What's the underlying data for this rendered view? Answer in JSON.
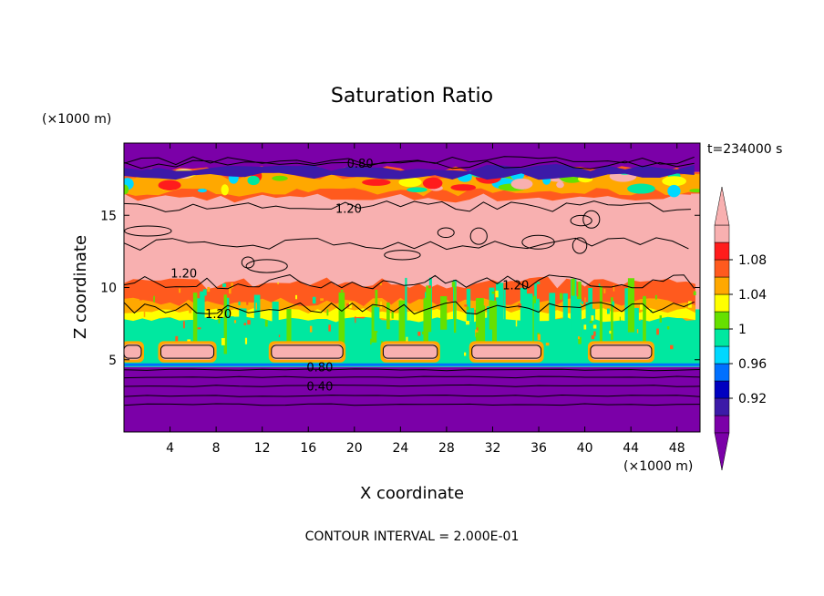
{
  "chart_data": {
    "type": "heatmap",
    "title": "Saturation Ratio",
    "xlabel": "X coordinate",
    "ylabel": "Z coordinate",
    "x_unit": "(×1000 m)",
    "y_unit": "(×1000 m)",
    "time_label": "t=234000 s",
    "footer": "CONTOUR INTERVAL = 2.000E-01",
    "xlim": [
      0,
      50
    ],
    "ylim": [
      0,
      20
    ],
    "x_ticks": [
      4,
      8,
      12,
      16,
      20,
      24,
      28,
      32,
      36,
      40,
      44,
      48
    ],
    "y_ticks": [
      5,
      10,
      15
    ],
    "contour_interval": 0.2,
    "colorbar": {
      "colors": [
        "#7b00a8",
        "#3c1aa8",
        "#0000c0",
        "#0070ff",
        "#00d8ff",
        "#00e8a0",
        "#66e000",
        "#ffff00",
        "#ffa800",
        "#ff5a1e",
        "#ff1c1c",
        "#f8b0b0"
      ],
      "tick_labels": [
        "0.92",
        "0.96",
        "1",
        "1.04",
        "1.08"
      ],
      "tick_values": [
        0.92,
        0.96,
        1.0,
        1.04,
        1.08
      ],
      "levels": [
        0.9,
        0.92,
        0.94,
        0.96,
        0.98,
        1.0,
        1.02,
        1.04,
        1.06,
        1.08,
        1.1
      ]
    },
    "regions": [
      {
        "z_range": [
          0,
          4.5
        ],
        "value": "< 0.90",
        "color": "#7b00a8"
      },
      {
        "z_range": [
          4.5,
          8.5
        ],
        "value": "0.98 - 1.02",
        "color": "#00e8a0"
      },
      {
        "z_range": [
          8.5,
          16.5
        ],
        "value": "> 1.10",
        "color": "#f8b0b0"
      },
      {
        "z_range": [
          16.5,
          18.0
        ],
        "value": "0.94 - 1.10 (mixed)",
        "color": "#ff5a1e"
      },
      {
        "z_range": [
          18.0,
          20
        ],
        "value": "< 0.90",
        "color": "#7b00a8"
      }
    ],
    "contour_labels": [
      {
        "text": "0.80",
        "x": 20.5,
        "z": 18.6
      },
      {
        "text": "1.20",
        "x": 19.5,
        "z": 15.5
      },
      {
        "text": "1.20",
        "x": 5.2,
        "z": 11.0
      },
      {
        "text": "1.20",
        "x": 34.0,
        "z": 10.2
      },
      {
        "text": "1.20",
        "x": 8.2,
        "z": 8.2
      },
      {
        "text": "0.80",
        "x": 17.0,
        "z": 4.5
      },
      {
        "text": "0.40",
        "x": 17.0,
        "z": 3.2
      }
    ]
  }
}
